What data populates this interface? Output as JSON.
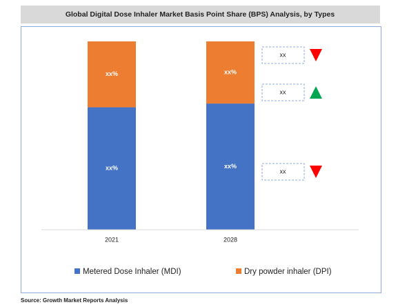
{
  "chart_data": {
    "type": "bar",
    "stacked": true,
    "title": "Global Digital Dose Inhaler Market Basis Point Share (BPS) Analysis, by Types",
    "categories": [
      "2021",
      "2028"
    ],
    "series": [
      {
        "name": "Metered Dose Inhaler (MDI)",
        "color": "#4472c4",
        "values": [
          65,
          67
        ],
        "value_labels": [
          "xx%",
          "xx%"
        ]
      },
      {
        "name": "Dry powder inhaler (DPI)",
        "color": "#ed7d31",
        "values": [
          35,
          33
        ],
        "value_labels": [
          "xx%",
          "xx%"
        ]
      }
    ],
    "ylim": [
      0,
      100
    ],
    "legend": "bottom",
    "annotations": [
      {
        "label": "xx",
        "direction": "down",
        "color": "#ff0000"
      },
      {
        "label": "xx",
        "direction": "up",
        "color": "#00a651"
      },
      {
        "label": "xx",
        "direction": "down",
        "color": "#ff0000"
      }
    ]
  },
  "source": "Source: Growth Market Reports Analysis"
}
